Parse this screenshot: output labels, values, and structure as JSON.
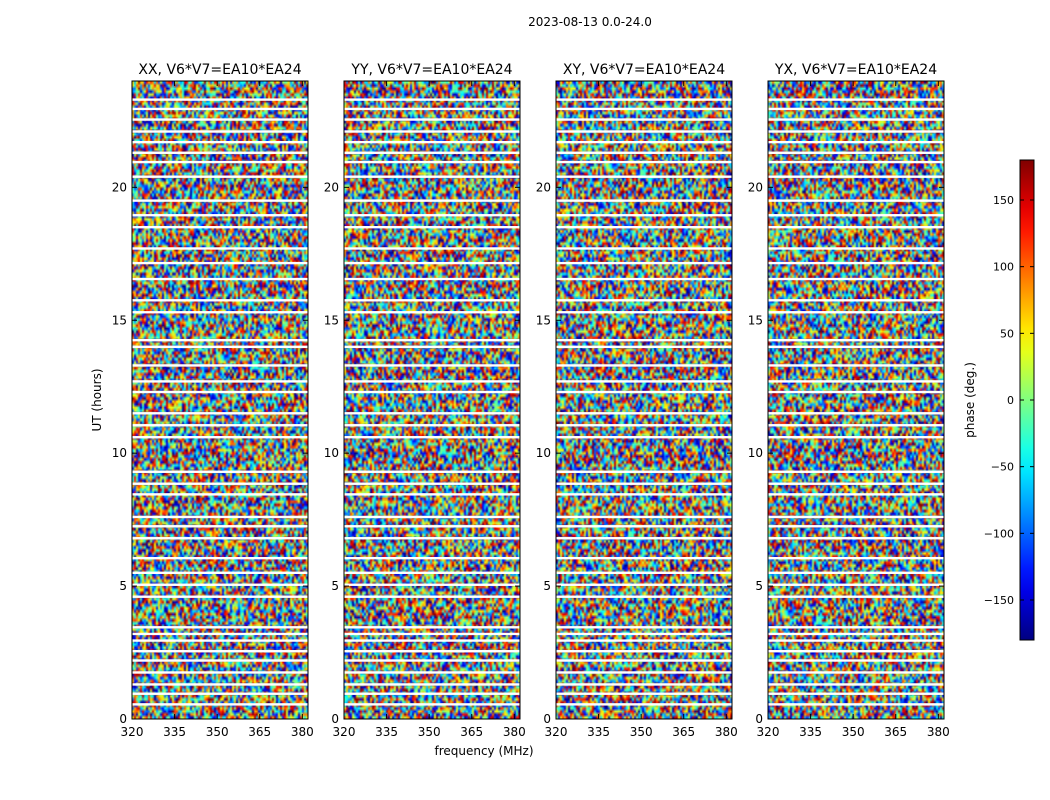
{
  "figure": {
    "suptitle": "2023-08-13 0.0-24.0",
    "xlabel": "frequency (MHz)",
    "ylabel": "UT (hours)"
  },
  "chart_data": {
    "type": "heatmap",
    "x_range": [
      320,
      382
    ],
    "y_range": [
      0,
      24
    ],
    "x_ticks": [
      320,
      335,
      350,
      365,
      380
    ],
    "y_ticks": [
      0,
      5,
      10,
      15,
      20
    ],
    "panels": [
      {
        "title": "XX, V6*V7=EA10*EA24"
      },
      {
        "title": "YY, V6*V7=EA10*EA24"
      },
      {
        "title": "XY, V6*V7=EA10*EA24"
      },
      {
        "title": "YX, V6*V7=EA10*EA24"
      }
    ],
    "colorbar": {
      "label": "phase (deg.)",
      "range": [
        -180,
        180
      ],
      "ticks": [
        -150,
        -100,
        -50,
        0,
        50,
        100,
        150
      ],
      "tick_labels": [
        "−150",
        "−100",
        "−50",
        "0",
        "50",
        "100",
        "150"
      ],
      "colormap": "jet"
    },
    "flagged_ut_hours": [
      0.55,
      0.95,
      1.3,
      1.75,
      2.2,
      2.55,
      2.95,
      3.2,
      3.45,
      4.6,
      5.05,
      5.5,
      6.05,
      6.8,
      7.25,
      7.6,
      8.45,
      8.85,
      9.3,
      10.6,
      11.05,
      11.5,
      12.3,
      12.7,
      13.3,
      14.0,
      14.25,
      15.3,
      15.75,
      16.55,
      17.15,
      17.7,
      18.5,
      18.95,
      19.5,
      20.4,
      20.95,
      21.3,
      21.7,
      22.1,
      22.55,
      22.95,
      23.3
    ]
  }
}
